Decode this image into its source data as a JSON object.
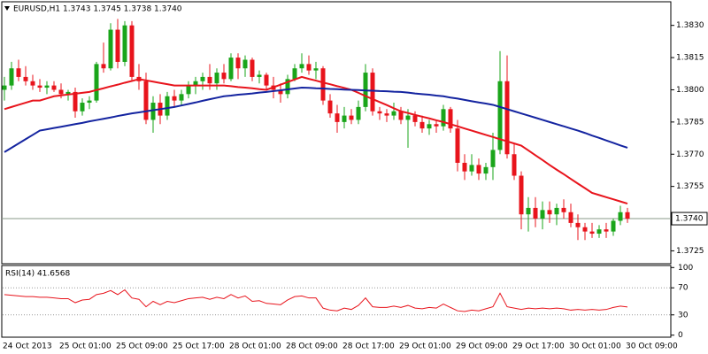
{
  "chart_data": [
    {
      "type": "candlestick",
      "title": "EURUSD,H1  1.3743 1.3745 1.3738 1.3740",
      "categories": [
        "24 Oct 2013",
        null,
        null,
        null,
        null,
        null,
        null,
        null,
        "25 Oct 01:00",
        null,
        null,
        null,
        null,
        null,
        null,
        null,
        "25 Oct 09:00",
        null,
        null,
        null,
        null,
        null,
        null,
        null,
        "25 Oct 17:00",
        null,
        null,
        null,
        null,
        null,
        null,
        null,
        "28 Oct 01:00",
        null,
        null,
        null,
        null,
        null,
        null,
        null,
        "28 Oct 09:00",
        null,
        null,
        null,
        null,
        null,
        null,
        null,
        "28 Oct 17:00",
        null,
        null,
        null,
        null,
        null,
        null,
        null,
        "29 Oct 01:00",
        null,
        null,
        null,
        null,
        null,
        null,
        null,
        "29 Oct 09:00",
        null,
        null,
        null,
        null,
        null,
        null,
        null,
        "29 Oct 17:00",
        null,
        null,
        null,
        null,
        null,
        null,
        null,
        "30 Oct 01:00",
        null,
        null,
        null,
        null,
        null,
        null,
        null,
        "30 Oct 09:00"
      ],
      "open": [
        1.38,
        1.3802,
        1.381,
        1.3806,
        1.3804,
        1.3802,
        1.3801,
        1.3802,
        1.38,
        1.3798,
        1.3799,
        1.379,
        1.3794,
        1.3795,
        1.3812,
        1.381,
        1.3828,
        1.3813,
        1.383,
        1.3806,
        1.3804,
        1.3786,
        1.3794,
        1.3788,
        1.3797,
        1.3795,
        1.3798,
        1.3802,
        1.3804,
        1.3806,
        1.3803,
        1.3808,
        1.3805,
        1.3815,
        1.381,
        1.3814,
        1.3806,
        1.3807,
        1.3802,
        1.38,
        1.3798,
        1.3805,
        1.381,
        1.3812,
        1.3809,
        1.381,
        1.3795,
        1.3789,
        1.3785,
        1.3788,
        1.3786,
        1.3792,
        1.3808,
        1.379,
        1.3789,
        1.3788,
        1.379,
        1.3786,
        1.3788,
        1.3785,
        1.3782,
        1.3784,
        1.3783,
        1.3791,
        1.3782,
        1.3766,
        1.3762,
        1.3765,
        1.3761,
        1.3764,
        1.3772,
        1.3804,
        1.377,
        1.376,
        1.3742,
        1.3745,
        1.374,
        1.3744,
        1.3742,
        1.3745,
        1.3743,
        1.3738,
        1.3736,
        1.3734,
        1.3733,
        1.3735,
        1.3734,
        1.3739,
        1.3743
      ],
      "high": [
        1.3806,
        1.3813,
        1.3814,
        1.3811,
        1.3807,
        1.3805,
        1.3804,
        1.3804,
        1.3803,
        1.38,
        1.3801,
        1.3796,
        1.3797,
        1.3813,
        1.3822,
        1.3831,
        1.3833,
        1.3832,
        1.3832,
        1.3812,
        1.3808,
        1.3797,
        1.3798,
        1.3799,
        1.38,
        1.38,
        1.3804,
        1.3806,
        1.3808,
        1.3812,
        1.381,
        1.3812,
        1.3817,
        1.3817,
        1.3816,
        1.3815,
        1.3809,
        1.3808,
        1.3806,
        1.3803,
        1.3807,
        1.3812,
        1.3817,
        1.3816,
        1.3813,
        1.3811,
        1.3798,
        1.3793,
        1.3792,
        1.3791,
        1.3795,
        1.3812,
        1.381,
        1.3792,
        1.3791,
        1.3794,
        1.3792,
        1.3791,
        1.379,
        1.3788,
        1.3786,
        1.3786,
        1.3793,
        1.3792,
        1.3786,
        1.377,
        1.377,
        1.3768,
        1.3766,
        1.378,
        1.3818,
        1.3816,
        1.3775,
        1.3762,
        1.375,
        1.375,
        1.3748,
        1.3748,
        1.3747,
        1.3749,
        1.3747,
        1.3742,
        1.3738,
        1.3738,
        1.3737,
        1.3738,
        1.374,
        1.3746,
        1.3745
      ],
      "low": [
        1.3795,
        1.38,
        1.3804,
        1.3802,
        1.38,
        1.3799,
        1.3798,
        1.3799,
        1.3796,
        1.3795,
        1.3787,
        1.3788,
        1.3791,
        1.3794,
        1.3808,
        1.3809,
        1.381,
        1.3811,
        1.3804,
        1.38,
        1.3784,
        1.378,
        1.3784,
        1.3786,
        1.3792,
        1.3793,
        1.3796,
        1.3798,
        1.38,
        1.38,
        1.38,
        1.3803,
        1.3804,
        1.3805,
        1.3806,
        1.3804,
        1.3803,
        1.38,
        1.3796,
        1.3794,
        1.3796,
        1.3804,
        1.3808,
        1.3807,
        1.3805,
        1.3793,
        1.3787,
        1.378,
        1.3782,
        1.3784,
        1.3784,
        1.379,
        1.3788,
        1.3786,
        1.3785,
        1.3786,
        1.3784,
        1.3773,
        1.3783,
        1.378,
        1.3779,
        1.378,
        1.3781,
        1.378,
        1.3762,
        1.3758,
        1.376,
        1.3758,
        1.3758,
        1.3758,
        1.377,
        1.3768,
        1.3758,
        1.3735,
        1.3734,
        1.3736,
        1.3735,
        1.3738,
        1.3737,
        1.374,
        1.3736,
        1.373,
        1.373,
        1.3731,
        1.3731,
        1.3731,
        1.3732,
        1.3737,
        1.3738
      ],
      "close": [
        1.3802,
        1.381,
        1.3806,
        1.3804,
        1.3802,
        1.3801,
        1.3802,
        1.38,
        1.3798,
        1.3799,
        1.379,
        1.3794,
        1.3795,
        1.3812,
        1.381,
        1.3828,
        1.3813,
        1.383,
        1.3806,
        1.3804,
        1.3786,
        1.3794,
        1.3788,
        1.3797,
        1.3795,
        1.3798,
        1.3802,
        1.3804,
        1.3806,
        1.3803,
        1.3808,
        1.3805,
        1.3815,
        1.381,
        1.3814,
        1.3806,
        1.3807,
        1.3802,
        1.38,
        1.3798,
        1.3805,
        1.381,
        1.3812,
        1.3809,
        1.381,
        1.3795,
        1.3789,
        1.3785,
        1.3788,
        1.3786,
        1.3792,
        1.3808,
        1.379,
        1.3789,
        1.3788,
        1.379,
        1.3786,
        1.3788,
        1.3785,
        1.3782,
        1.3784,
        1.3783,
        1.3791,
        1.3782,
        1.3766,
        1.3762,
        1.3765,
        1.3761,
        1.3764,
        1.3772,
        1.3804,
        1.377,
        1.376,
        1.3742,
        1.3745,
        1.374,
        1.3744,
        1.3742,
        1.3745,
        1.3743,
        1.3738,
        1.3736,
        1.3734,
        1.3733,
        1.3735,
        1.3734,
        1.3739,
        1.3743,
        1.374
      ],
      "up_color": "#1aa51a",
      "down_color": "#e8141c",
      "lines": [
        {
          "color": "#e8141c",
          "values": [
            1.3791,
            1.3792,
            1.3793,
            1.3794,
            1.3795,
            1.3795,
            1.3796,
            1.3797,
            1.37974,
            1.37978,
            1.37982,
            1.37986,
            1.3799,
            1.37999,
            1.38007,
            1.38016,
            1.38024,
            1.38033,
            1.38041,
            1.3805,
            1.38044,
            1.38038,
            1.38032,
            1.38026,
            1.3802,
            1.3802,
            1.3802,
            1.3802,
            1.3802,
            1.3802,
            1.3802,
            1.3802,
            1.38017,
            1.38013,
            1.3801,
            1.38007,
            1.38003,
            1.38,
            1.38012,
            1.38024,
            1.38036,
            1.38048,
            1.3806,
            1.38051,
            1.38043,
            1.38034,
            1.38026,
            1.38017,
            1.38009,
            1.38,
            1.37986,
            1.37971,
            1.37957,
            1.37943,
            1.37929,
            1.37914,
            1.379,
            1.37892,
            1.37883,
            1.37875,
            1.37867,
            1.37858,
            1.3785,
            1.3784,
            1.3783,
            1.3782,
            1.3781,
            1.378,
            1.3779,
            1.3778,
            1.3777,
            1.3776,
            1.3775,
            1.3774,
            1.37718,
            1.37695,
            1.37673,
            1.3765,
            1.37628,
            1.37607,
            1.37585,
            1.37563,
            1.37542,
            1.3752,
            1.3751,
            1.375,
            1.3749,
            1.3748,
            1.3747
          ]
        },
        {
          "color": "#1424a0",
          "values": [
            1.3771,
            1.3773,
            1.3775,
            1.3777,
            1.3779,
            1.3781,
            1.37816,
            1.37822,
            1.37828,
            1.37834,
            1.3784,
            1.37846,
            1.37853,
            1.37859,
            1.37865,
            1.37871,
            1.37878,
            1.37884,
            1.3789,
            1.37895,
            1.379,
            1.37905,
            1.3791,
            1.37915,
            1.3792,
            1.37927,
            1.37934,
            1.37941,
            1.37949,
            1.37956,
            1.37963,
            1.3797,
            1.37973,
            1.37977,
            1.3798,
            1.37983,
            1.37987,
            1.3799,
            1.37994,
            1.37998,
            1.38002,
            1.38006,
            1.3801,
            1.38009,
            1.38007,
            1.38006,
            1.38004,
            1.38003,
            1.38001,
            1.38,
            1.37999,
            1.37997,
            1.37996,
            1.37994,
            1.37993,
            1.37991,
            1.3799,
            1.37987,
            1.37983,
            1.3798,
            1.37977,
            1.37973,
            1.3797,
            1.37964,
            1.37959,
            1.37953,
            1.37947,
            1.37941,
            1.37936,
            1.3793,
            1.3792,
            1.3791,
            1.379,
            1.3789,
            1.3788,
            1.3787,
            1.3786,
            1.3785,
            1.3784,
            1.3783,
            1.3782,
            1.3781,
            1.37799,
            1.37787,
            1.37776,
            1.37764,
            1.37753,
            1.37741,
            1.3773
          ]
        }
      ],
      "ylim": [
        1.3719,
        1.3841
      ],
      "yticks": [
        {
          "value": 1.383,
          "label": "1.3830"
        },
        {
          "value": 1.3815,
          "label": "1.3815"
        },
        {
          "value": 1.38,
          "label": "1.3800"
        },
        {
          "value": 1.3785,
          "label": "1.3785"
        },
        {
          "value": 1.377,
          "label": "1.3770"
        },
        {
          "value": 1.3755,
          "label": "1.3755"
        },
        {
          "value": 1.3725,
          "label": "1.3725"
        }
      ],
      "price_line": {
        "value": 1.374,
        "label": "1.3740"
      }
    },
    {
      "type": "line",
      "title": "RSI(14) 41.6568",
      "color": "#e8141c",
      "values": [
        60,
        59,
        58,
        57,
        57,
        56,
        56,
        55,
        54,
        54,
        48,
        52,
        53,
        60,
        62,
        66,
        60,
        67,
        55,
        53,
        42,
        50,
        45,
        50,
        48,
        51,
        54,
        55,
        56,
        53,
        56,
        54,
        60,
        55,
        58,
        50,
        51,
        47,
        46,
        45,
        52,
        57,
        58,
        55,
        55,
        40,
        37,
        36,
        40,
        38,
        44,
        55,
        42,
        41,
        41,
        43,
        41,
        44,
        40,
        39,
        41,
        40,
        46,
        41,
        36,
        35,
        37,
        36,
        39,
        42,
        62,
        42,
        40,
        38,
        40,
        39,
        40,
        39,
        40,
        39,
        37,
        38,
        37,
        38,
        37,
        38,
        41,
        43,
        41.6568
      ],
      "ylim": [
        -3,
        103
      ],
      "yticks": [
        100,
        70,
        30,
        0
      ],
      "levels": [
        70,
        30
      ]
    }
  ]
}
